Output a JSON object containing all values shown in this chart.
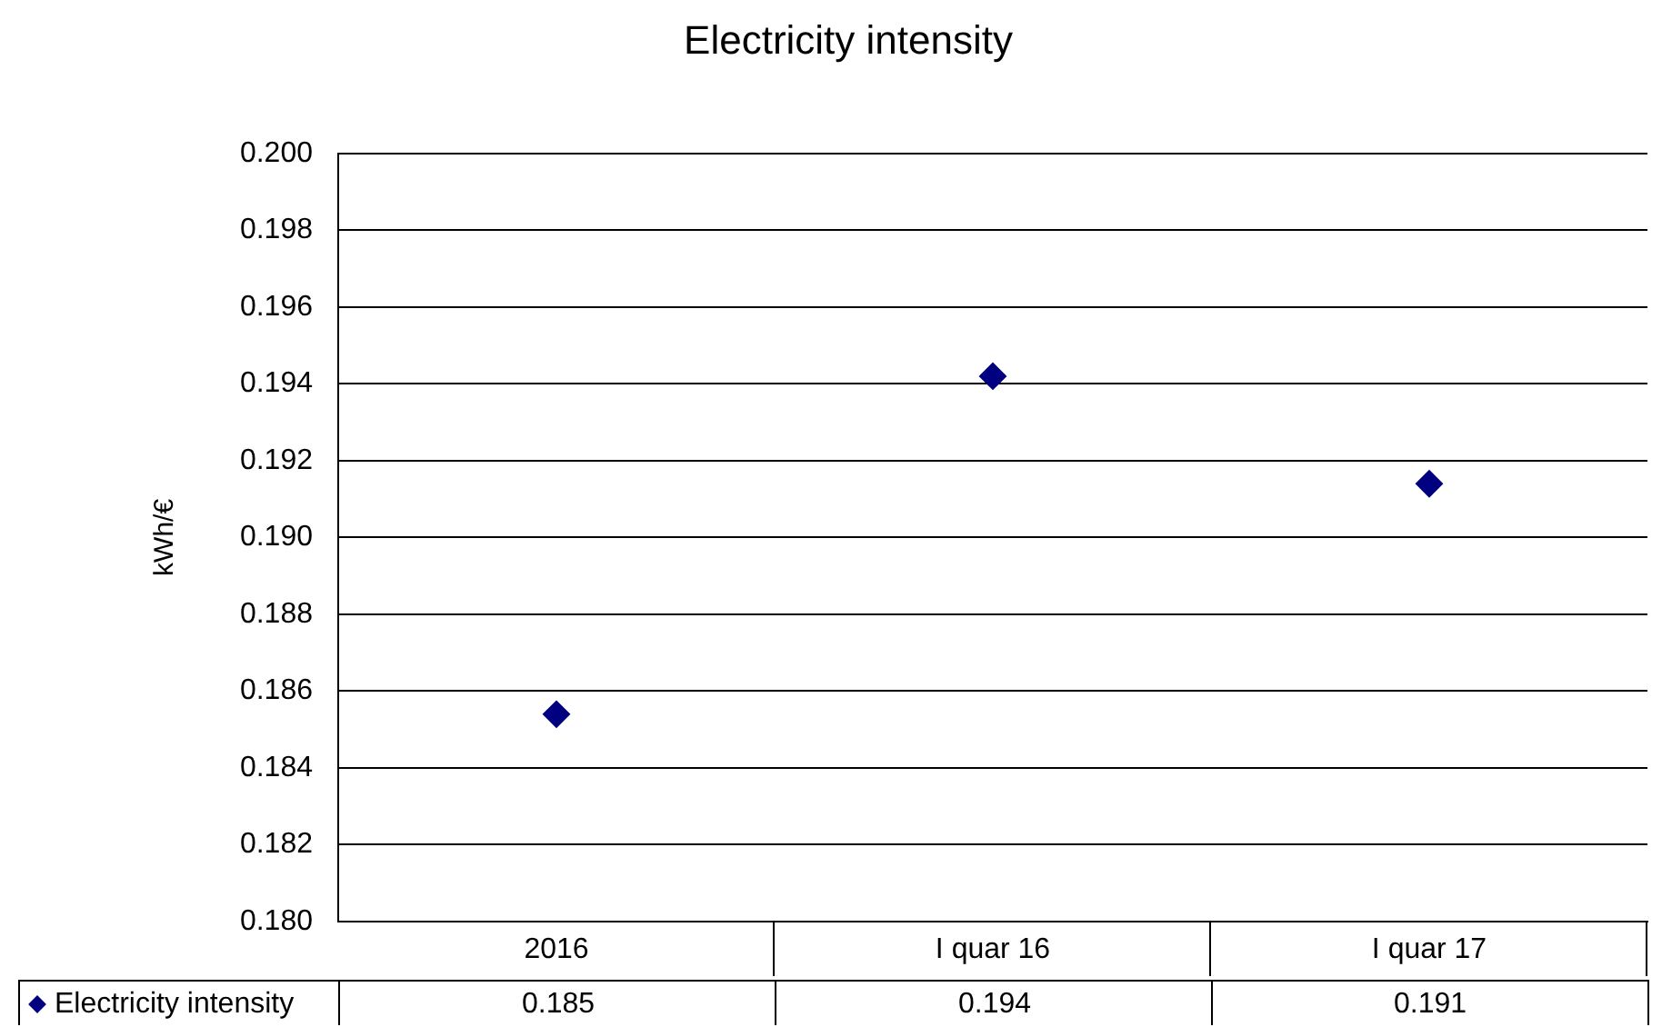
{
  "chart_data": {
    "type": "scatter",
    "title": "Electricity intensity",
    "ylabel": "kWh/€",
    "categories": [
      "2016",
      "I quar 16",
      "I quar 17"
    ],
    "series": [
      {
        "name": "Electricity intensity",
        "color": "#000080",
        "values": [
          0.1854,
          0.1942,
          0.1914
        ],
        "value_labels": [
          "0.185",
          "0.194",
          "0.191"
        ]
      }
    ],
    "ylim": [
      0.18,
      0.2
    ],
    "yticks": [
      {
        "value": 0.18,
        "label": "0.180"
      },
      {
        "value": 0.182,
        "label": "0.182"
      },
      {
        "value": 0.184,
        "label": "0.184"
      },
      {
        "value": 0.186,
        "label": "0.186"
      },
      {
        "value": 0.188,
        "label": "0.188"
      },
      {
        "value": 0.19,
        "label": "0.190"
      },
      {
        "value": 0.192,
        "label": "0.192"
      },
      {
        "value": 0.194,
        "label": "0.194"
      },
      {
        "value": 0.196,
        "label": "0.196"
      },
      {
        "value": 0.198,
        "label": "0.198"
      },
      {
        "value": 0.2,
        "label": "0.200"
      }
    ],
    "grid": "y",
    "legend": "bottom",
    "marker": "diamond"
  }
}
